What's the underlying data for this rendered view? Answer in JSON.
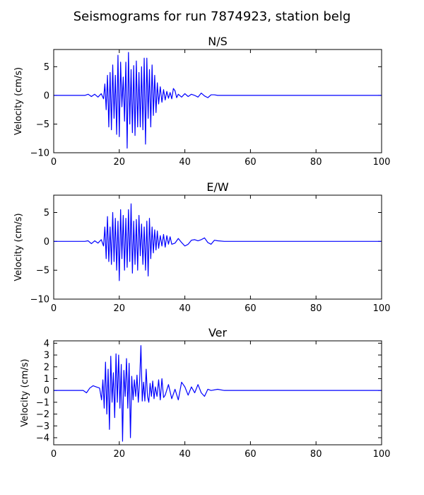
{
  "chart_data": {
    "title": "Seismograms for run 7874923, station belg",
    "color": "#0000ff",
    "panels": [
      {
        "type": "line",
        "title": "N/S",
        "ylabel": "Velocity (cm/s)",
        "xlim": [
          0,
          100
        ],
        "ylim": [
          -10,
          8
        ],
        "xticks": [
          0,
          20,
          40,
          60,
          80,
          100
        ],
        "yticks": [
          -10,
          -5,
          0,
          5
        ],
        "series": [
          {
            "x": [
              0,
              5,
              9.5,
              10.5,
              11.5,
              12.5,
              13.5,
              14.5,
              15.2,
              15.6,
              16.0,
              16.4,
              16.8,
              17.2,
              17.6,
              18.0,
              18.4,
              18.8,
              19.2,
              19.6,
              20.0,
              20.4,
              20.8,
              21.2,
              21.6,
              22.0,
              22.4,
              22.8,
              23.2,
              23.6,
              24.0,
              24.4,
              24.8,
              25.2,
              25.6,
              26.0,
              26.4,
              26.8,
              27.2,
              27.6,
              28.0,
              28.4,
              28.8,
              29.2,
              29.6,
              30.0,
              30.4,
              30.8,
              31.2,
              31.6,
              32.0,
              32.5,
              33.0,
              33.5,
              34.0,
              34.5,
              35.0,
              35.5,
              36.0,
              36.5,
              37.0,
              37.5,
              38.0,
              39.0,
              40.0,
              41.0,
              42.0,
              43.0,
              44.0,
              45.0,
              46.0,
              47.0,
              48.0,
              49.0,
              50.0,
              52.0,
              100
            ],
            "y": [
              0,
              0,
              0,
              0.2,
              -0.2,
              0.2,
              -0.3,
              0.3,
              -0.6,
              2.0,
              -2.5,
              3.5,
              -5.5,
              4.0,
              -6.0,
              5.3,
              -4.0,
              3.5,
              -6.8,
              7.0,
              -7.2,
              5.8,
              -2.0,
              3.2,
              -4.5,
              5.8,
              -9.2,
              7.5,
              -5.0,
              4.5,
              -6.5,
              5.2,
              -7.0,
              6.0,
              -5.5,
              4.0,
              -5.5,
              5.0,
              -6.0,
              6.5,
              -8.5,
              6.5,
              -4.0,
              4.5,
              -5.5,
              5.3,
              -3.5,
              3.5,
              -3.0,
              2.2,
              -1.5,
              1.5,
              -1.2,
              1.0,
              -0.8,
              0.7,
              -0.5,
              0.5,
              -0.6,
              1.2,
              0.8,
              -0.4,
              0.2,
              -0.3,
              0.3,
              -0.2,
              0.2,
              0,
              -0.3,
              0.4,
              -0.1,
              -0.4,
              0.1,
              0.1,
              0,
              0,
              0
            ]
          }
        ]
      },
      {
        "type": "line",
        "title": "E/W",
        "ylabel": "Velocity (cm/s)",
        "xlim": [
          0,
          100
        ],
        "ylim": [
          -10,
          8
        ],
        "xticks": [
          0,
          20,
          40,
          60,
          80,
          100
        ],
        "yticks": [
          -10,
          -5,
          0,
          5
        ],
        "series": [
          {
            "x": [
              0,
              5,
              9.5,
              10.5,
              11.5,
              12.5,
              13.5,
              14.5,
              15.2,
              15.6,
              16.0,
              16.4,
              16.8,
              17.2,
              17.6,
              18.0,
              18.4,
              18.8,
              19.2,
              19.6,
              20.0,
              20.4,
              20.8,
              21.2,
              21.6,
              22.0,
              22.4,
              22.8,
              23.2,
              23.6,
              24.0,
              24.4,
              24.8,
              25.2,
              25.6,
              26.0,
              26.4,
              26.8,
              27.2,
              27.6,
              28.0,
              28.4,
              28.8,
              29.2,
              29.6,
              30.0,
              30.4,
              30.8,
              31.2,
              31.6,
              32.0,
              32.5,
              33.0,
              33.5,
              34.0,
              34.5,
              35.0,
              35.5,
              36.0,
              37.0,
              38.0,
              39.0,
              40.0,
              41.0,
              42.0,
              43.0,
              44.0,
              45.0,
              46.0,
              47.0,
              48.0,
              49.0,
              50.0,
              52.0,
              100
            ],
            "y": [
              0,
              0,
              0,
              0.1,
              -0.4,
              0.1,
              -0.3,
              0.3,
              -0.8,
              2.5,
              -3.0,
              4.3,
              -3.5,
              2.5,
              -4.0,
              5.0,
              -3.5,
              4.0,
              -5.0,
              3.5,
              -6.8,
              5.5,
              -3.0,
              4.5,
              -5.0,
              4.0,
              -4.5,
              5.5,
              -3.5,
              6.5,
              -5.5,
              3.5,
              -4.0,
              3.8,
              -5.0,
              4.5,
              -2.5,
              3.0,
              -4.0,
              2.5,
              -5.0,
              3.5,
              -6.0,
              4.0,
              -3.0,
              2.5,
              -2.0,
              2.0,
              -1.5,
              1.8,
              -1.2,
              1.0,
              -0.8,
              1.2,
              -1.0,
              1.0,
              -0.5,
              0.8,
              -0.5,
              -0.3,
              0.5,
              -0.2,
              -0.8,
              -0.5,
              0.2,
              0.3,
              0.1,
              0.3,
              0.6,
              -0.2,
              -0.5,
              0.2,
              0.1,
              0,
              0
            ]
          }
        ]
      },
      {
        "type": "line",
        "title": "Ver",
        "ylabel": "Velocity (cm/s)",
        "xlim": [
          0,
          100
        ],
        "ylim": [
          -4.6,
          4.2
        ],
        "xticks": [
          0,
          20,
          40,
          60,
          80,
          100
        ],
        "yticks": [
          -4,
          -3,
          -2,
          -1,
          0,
          1,
          2,
          3,
          4
        ],
        "series": [
          {
            "x": [
              0,
              5,
              9.0,
              10.0,
              11.0,
              12.0,
              13.0,
              14.0,
              14.6,
              15.0,
              15.4,
              15.8,
              16.2,
              16.6,
              17.0,
              17.4,
              17.8,
              18.2,
              18.6,
              19.0,
              19.4,
              19.8,
              20.2,
              20.6,
              21.0,
              21.4,
              21.8,
              22.2,
              22.6,
              23.0,
              23.4,
              23.8,
              24.2,
              24.6,
              25.0,
              25.4,
              25.8,
              26.2,
              26.6,
              27.0,
              27.4,
              27.8,
              28.2,
              28.6,
              29.0,
              29.4,
              29.8,
              30.2,
              30.6,
              31.0,
              31.5,
              32.0,
              32.5,
              33.0,
              33.5,
              34.0,
              35.0,
              36.0,
              37.0,
              38.0,
              39.0,
              40.0,
              41.0,
              42.0,
              43.0,
              44.0,
              45.0,
              46.0,
              47.0,
              48.0,
              50.0,
              52.0,
              100
            ],
            "y": [
              0,
              0,
              0,
              -0.2,
              0.2,
              0.4,
              0.3,
              0.2,
              -0.8,
              0.9,
              -1.5,
              2.4,
              -2.0,
              1.8,
              -3.3,
              2.9,
              -1.0,
              1.5,
              -2.3,
              3.1,
              -1.0,
              3.0,
              -1.5,
              2.2,
              -4.3,
              1.7,
              -0.5,
              2.7,
              -1.5,
              2.3,
              -4.0,
              1.2,
              -0.8,
              0.9,
              -0.5,
              1.3,
              -1.0,
              0.8,
              3.8,
              -0.9,
              0.7,
              -0.9,
              1.8,
              -0.5,
              -1.0,
              0.6,
              -0.5,
              0.8,
              -0.7,
              0.3,
              -0.5,
              0.9,
              -0.8,
              1.0,
              -0.6,
              -0.4,
              0.5,
              -0.7,
              0.1,
              -0.8,
              0.7,
              0.3,
              -0.4,
              0.3,
              -0.2,
              0.5,
              -0.2,
              -0.5,
              0.1,
              0,
              0.1,
              0,
              0
            ]
          }
        ]
      }
    ]
  }
}
